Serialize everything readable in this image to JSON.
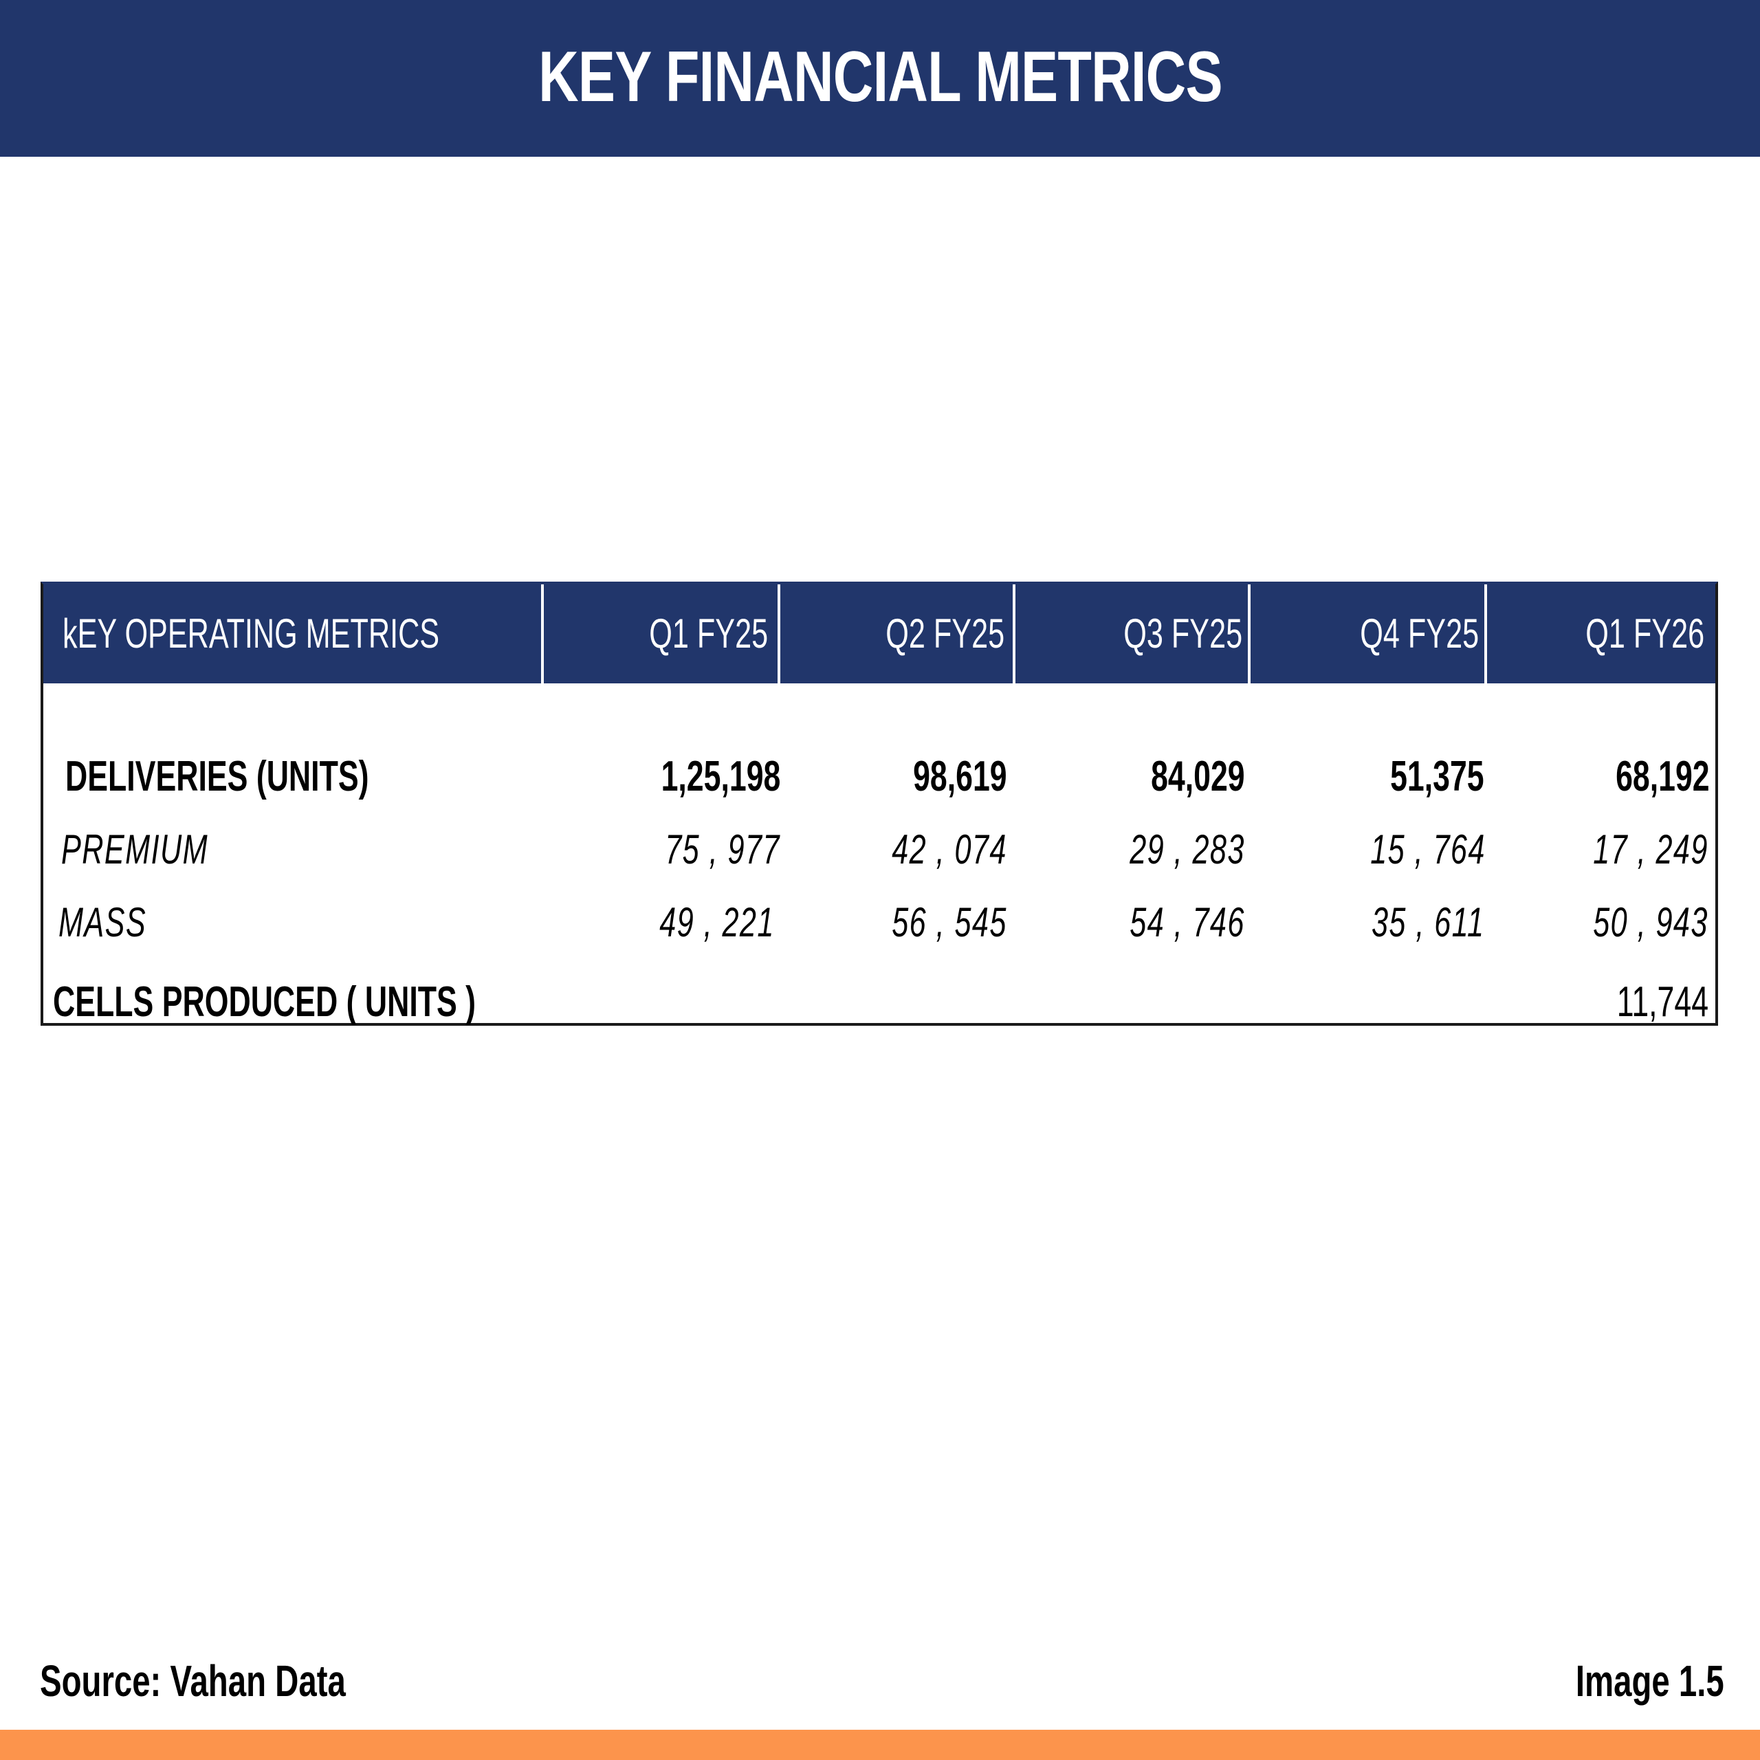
{
  "banner": {
    "title": "KEY FINANCIAL METRICS",
    "color": "#21366b"
  },
  "table": {
    "header": {
      "label": "kEY OPERATING METRICS",
      "columns": [
        "Q1 FY25",
        "Q2 FY25",
        "Q3 FY25",
        "Q4 FY25",
        "Q1 FY26"
      ]
    },
    "rows": [
      {
        "label": "DELIVERIES (UNITS)",
        "values": [
          "1,25,198",
          "98,619",
          "84,029",
          "51,375",
          "68,192"
        ]
      },
      {
        "label": "PREMIUM",
        "values": [
          "75 , 977",
          "42 , 074",
          "29 , 283",
          "15 , 764",
          "17 , 249"
        ]
      },
      {
        "label": "MASS",
        "values": [
          "49 , 221",
          "56 , 545",
          "54 , 746",
          "35 , 611",
          "50 , 943"
        ]
      },
      {
        "label": "CELLS PRODUCED ( UNITS )",
        "values": [
          "",
          "",
          "",
          "",
          "11,744"
        ]
      }
    ]
  },
  "footer": {
    "source": "Source: Vahan Data",
    "image_label": "Image 1.5"
  },
  "accent_color": "#fc944c"
}
